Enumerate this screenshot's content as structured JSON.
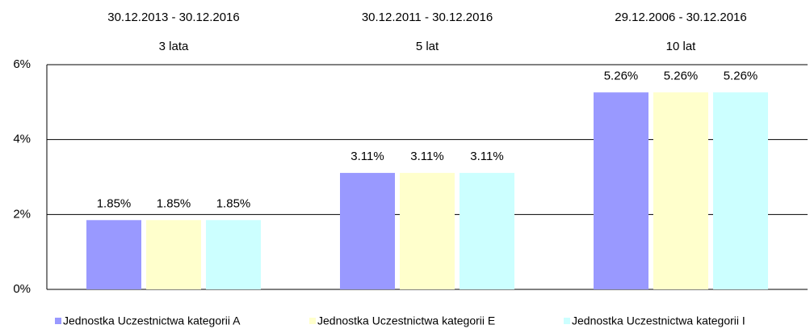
{
  "chart_data": {
    "type": "bar",
    "categories": [
      "3 lata",
      "5 lat",
      "10 lat"
    ],
    "category_dates": [
      "30.12.2013 - 30.12.2016",
      "30.12.2011 - 30.12.2016",
      "29.12.2006 - 30.12.2016"
    ],
    "series": [
      {
        "name": "Jednostka Uczestnictwa kategorii A",
        "color": "#9999ff",
        "values": [
          1.85,
          3.11,
          5.26
        ],
        "value_labels": [
          "1.85%",
          "3.11%",
          "5.26%"
        ]
      },
      {
        "name": "Jednostka Uczestnictwa kategorii E",
        "color": "#ffffcc",
        "values": [
          1.85,
          3.11,
          5.26
        ],
        "value_labels": [
          "1.85%",
          "3.11%",
          "5.26%"
        ]
      },
      {
        "name": "Jednostka Uczestnictwa kategorii I",
        "color": "#ccffff",
        "values": [
          1.85,
          3.11,
          5.26
        ],
        "value_labels": [
          "1.85%",
          "3.11%",
          "5.26%"
        ]
      }
    ],
    "ylim": [
      0,
      6
    ],
    "yticks": [
      {
        "value": 0,
        "label": "0%"
      },
      {
        "value": 2,
        "label": "2%"
      },
      {
        "value": 4,
        "label": "4%"
      },
      {
        "value": 6,
        "label": "6%"
      }
    ],
    "grid": true,
    "legend": "bottom"
  }
}
